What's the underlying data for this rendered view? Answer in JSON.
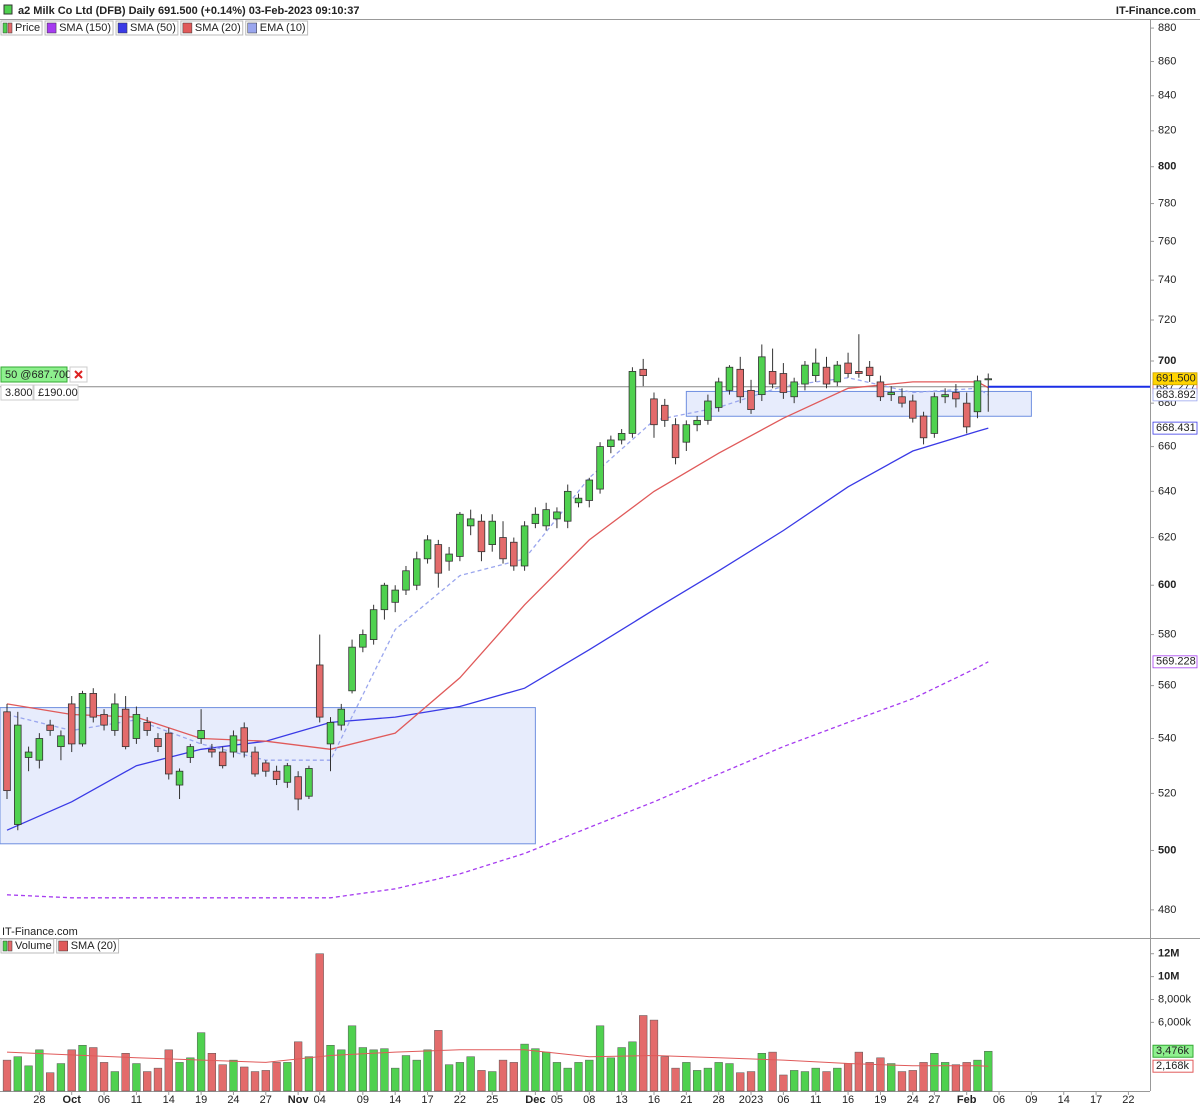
{
  "header": {
    "title": "a2 Milk Co Ltd (DFB) Daily 691.500 (+0.14%) 03-Feb-2023 09:10:37",
    "brand": "IT-Finance.com"
  },
  "chart_data": [
    {
      "type": "candlestick",
      "name": "Price",
      "watermark": "IT-Finance.com",
      "log_scale": true,
      "grid": false,
      "ylim": [
        473.4,
        884.9
      ],
      "yticks": [
        480,
        500,
        520,
        540,
        560,
        580,
        600,
        620,
        640,
        660,
        680,
        700,
        720,
        740,
        760,
        780,
        800,
        820,
        840,
        860,
        880
      ],
      "xlim": [
        -0.65,
        106
      ],
      "up_color": "#4fd14f",
      "down_color": "#e36b6b",
      "open": [
        550,
        509,
        533,
        532,
        545,
        537,
        553,
        538,
        557,
        549,
        543,
        551,
        540,
        546,
        540,
        542,
        523,
        533,
        540,
        536,
        535,
        535,
        544,
        535,
        531,
        528,
        524,
        526,
        519,
        568,
        538,
        545,
        558,
        575,
        578,
        590,
        593,
        598,
        600,
        611,
        617,
        610,
        612,
        625,
        627,
        617,
        620,
        618,
        608,
        626,
        625,
        628,
        627,
        635,
        636,
        641,
        660,
        663,
        666,
        696,
        682,
        679,
        670,
        662,
        670,
        672,
        678,
        686,
        696,
        686,
        684,
        695,
        694,
        683,
        689,
        693,
        697,
        690,
        699,
        695,
        697,
        690,
        684,
        683,
        681,
        674,
        666,
        683,
        685,
        680,
        676,
        691
      ],
      "high": [
        553,
        550,
        537,
        542,
        547,
        543,
        556,
        558,
        559,
        551,
        557,
        556,
        552,
        548,
        542,
        544,
        529,
        538,
        551,
        538,
        537,
        543,
        546,
        537,
        532,
        530,
        531,
        528,
        530,
        580,
        548,
        553,
        578,
        582,
        592,
        601,
        600,
        608,
        614,
        621,
        619,
        616,
        631,
        632,
        630,
        630,
        627,
        620,
        627,
        633,
        635,
        633,
        643,
        639,
        646,
        662,
        665,
        668,
        697,
        701,
        685,
        682,
        673,
        672,
        674,
        684,
        692,
        698,
        702,
        691,
        708,
        706,
        699,
        692,
        700,
        706,
        702,
        700,
        704,
        713,
        700,
        693,
        688,
        687,
        684,
        676,
        685,
        687,
        689,
        685,
        693,
        694
      ],
      "low": [
        518,
        507,
        528,
        529,
        541,
        532,
        535,
        537,
        546,
        543,
        541,
        536,
        538,
        541,
        535,
        525,
        518,
        531,
        538,
        533,
        529,
        533,
        533,
        526,
        526,
        523,
        522,
        514,
        518,
        546,
        528,
        543,
        557,
        573,
        576,
        586,
        589,
        596,
        598,
        609,
        599,
        606,
        610,
        621,
        610,
        614,
        609,
        606,
        606,
        624,
        623,
        624,
        624,
        633,
        633,
        639,
        657,
        661,
        664,
        688,
        664,
        669,
        652,
        658,
        667,
        670,
        676,
        684,
        680,
        675,
        681,
        687,
        682,
        680,
        686,
        690,
        687,
        688,
        692,
        692,
        690,
        681,
        681,
        678,
        671,
        661,
        664,
        680,
        678,
        666,
        673,
        676
      ],
      "close": [
        521,
        545,
        535,
        540,
        543,
        541,
        538,
        557,
        548,
        545,
        553,
        537,
        549,
        543,
        537,
        527,
        528,
        537,
        543,
        535,
        530,
        541,
        535,
        527,
        528,
        525,
        530,
        518,
        529,
        548,
        546,
        551,
        575,
        580,
        590,
        600,
        598,
        606,
        611,
        619,
        605,
        613,
        630,
        628,
        614,
        627,
        611,
        608,
        625,
        630,
        632,
        631,
        640,
        637,
        645,
        660,
        663,
        666,
        695,
        693,
        670,
        672,
        655,
        670,
        672,
        681,
        690,
        697,
        683,
        677,
        702,
        689,
        685,
        690,
        698,
        699,
        689,
        698,
        694,
        694,
        693,
        683,
        685,
        680,
        673,
        664,
        683,
        684,
        682,
        669,
        690.5,
        691.5
      ],
      "last_label": "691.500",
      "series": [
        {
          "name": "SMA (150)",
          "color": "#a63cf0",
          "dashed": true,
          "x": [
            0,
            6,
            12,
            18,
            24,
            30,
            36,
            42,
            48,
            54,
            60,
            66,
            72,
            78,
            84,
            90,
            91
          ],
          "values": [
            485,
            484,
            484,
            484,
            484,
            484,
            487,
            492,
            499,
            508,
            517,
            527,
            537,
            546,
            555,
            567,
            569.228
          ],
          "last_label": "569.228"
        },
        {
          "name": "SMA (50)",
          "color": "#3a3ae6",
          "dashed": false,
          "x": [
            0,
            6,
            12,
            18,
            24,
            30,
            36,
            42,
            48,
            54,
            60,
            66,
            72,
            78,
            84,
            90,
            91
          ],
          "values": [
            507,
            517,
            530,
            536,
            539,
            546,
            548,
            552,
            559,
            574,
            590,
            606,
            623,
            642,
            658,
            667,
            668.431
          ],
          "last_label": "668.431"
        },
        {
          "name": "SMA (20)",
          "color": "#e05a5a",
          "dashed": false,
          "x": [
            0,
            6,
            12,
            18,
            24,
            30,
            36,
            42,
            48,
            54,
            60,
            66,
            72,
            78,
            84,
            90,
            91
          ],
          "values": [
            553,
            549,
            548,
            540,
            539,
            536,
            542,
            563,
            592,
            619,
            640,
            657,
            673,
            687,
            690,
            690,
            687.277
          ],
          "last_label": "687.277"
        },
        {
          "name": "EMA (10)",
          "color": "#9aa6ee",
          "dashed": true,
          "x": [
            0,
            6,
            12,
            18,
            24,
            30,
            36,
            42,
            48,
            54,
            60,
            66,
            72,
            78,
            84,
            90,
            91
          ],
          "values": [
            549,
            543,
            547,
            538,
            532,
            532,
            582,
            604,
            611,
            646,
            672,
            678,
            688,
            692,
            685,
            687,
            683.892
          ],
          "last_label": "683.892"
        }
      ],
      "zones": [
        {
          "x": [
            -0.65,
            49
          ],
          "y": [
            502.3,
            551.6
          ]
        },
        {
          "x": [
            63,
            95
          ],
          "y": [
            673.9,
            685.5
          ]
        }
      ],
      "order": {
        "label": "50 @687.700",
        "price": 687.7,
        "quantity": "3.800",
        "amount": "£190.00"
      }
    },
    {
      "type": "bar",
      "name": "Volume",
      "xlim": [
        -0.65,
        106
      ],
      "ylim": [
        0,
        13200000
      ],
      "yticks": [
        {
          "value": 6000000,
          "label": "6,000k"
        },
        {
          "value": 8000000,
          "label": "8,000k"
        },
        {
          "value": 10000000,
          "label": "10M"
        },
        {
          "value": 12000000,
          "label": "12M"
        }
      ],
      "xticks": [
        {
          "value": 3,
          "label": "28"
        },
        {
          "value": 6,
          "label": "Oct"
        },
        {
          "value": 9,
          "label": "06"
        },
        {
          "value": 12,
          "label": "11"
        },
        {
          "value": 15,
          "label": "14"
        },
        {
          "value": 18,
          "label": "19"
        },
        {
          "value": 21,
          "label": "24"
        },
        {
          "value": 24,
          "label": "27"
        },
        {
          "value": 27,
          "label": "Nov"
        },
        {
          "value": 29,
          "label": "04"
        },
        {
          "value": 33,
          "label": "09"
        },
        {
          "value": 36,
          "label": "14"
        },
        {
          "value": 39,
          "label": "17"
        },
        {
          "value": 42,
          "label": "22"
        },
        {
          "value": 45,
          "label": "25"
        },
        {
          "value": 49,
          "label": "Dec"
        },
        {
          "value": 51,
          "label": "05"
        },
        {
          "value": 54,
          "label": "08"
        },
        {
          "value": 57,
          "label": "13"
        },
        {
          "value": 60,
          "label": "16"
        },
        {
          "value": 63,
          "label": "21"
        },
        {
          "value": 66,
          "label": "28"
        },
        {
          "value": 69,
          "label": "2023"
        },
        {
          "value": 72,
          "label": "06"
        },
        {
          "value": 75,
          "label": "11"
        },
        {
          "value": 78,
          "label": "16"
        },
        {
          "value": 81,
          "label": "19"
        },
        {
          "value": 84,
          "label": "24"
        },
        {
          "value": 86,
          "label": "27"
        },
        {
          "value": 89,
          "label": "Feb"
        },
        {
          "value": 92,
          "label": "06"
        },
        {
          "value": 95,
          "label": "09"
        },
        {
          "value": 98,
          "label": "14"
        },
        {
          "value": 101,
          "label": "17"
        },
        {
          "value": 104,
          "label": "22"
        }
      ],
      "values": [
        2700000,
        3000000,
        2200000,
        3600000,
        1600000,
        2400000,
        3600000,
        4000000,
        3800000,
        2500000,
        1700000,
        3300000,
        2400000,
        1700000,
        2000000,
        3600000,
        2500000,
        2900000,
        5100000,
        3300000,
        2300000,
        2700000,
        2100000,
        1700000,
        1800000,
        2500000,
        2500000,
        4300000,
        3000000,
        12000000,
        4000000,
        3600000,
        5700000,
        3800000,
        3600000,
        3700000,
        2000000,
        3100000,
        2700000,
        3600000,
        5300000,
        2300000,
        2500000,
        3000000,
        1800000,
        1700000,
        2700000,
        2500000,
        4100000,
        3700000,
        3400000,
        2500000,
        2000000,
        2500000,
        2700000,
        5700000,
        2900000,
        3800000,
        4300000,
        6600000,
        6200000,
        3000000,
        2000000,
        2500000,
        1800000,
        2000000,
        2500000,
        2400000,
        1600000,
        1700000,
        3300000,
        3400000,
        1400000,
        1800000,
        1700000,
        2000000,
        1700000,
        2000000,
        2400000,
        3400000,
        2500000,
        2900000,
        2400000,
        1700000,
        1800000,
        2500000,
        3300000,
        2500000,
        2300000,
        2500000,
        2700000,
        3476000
      ],
      "last_label": "3,476k",
      "series": [
        {
          "name": "SMA (20)",
          "color": "#e05a5a",
          "x": [
            0,
            12,
            24,
            30,
            36,
            42,
            48,
            54,
            60,
            66,
            72,
            78,
            84,
            90,
            91
          ],
          "values": [
            3400000,
            2900000,
            2500000,
            3100000,
            3400000,
            3600000,
            3600000,
            3000000,
            3100000,
            2900000,
            2700000,
            2400000,
            2200000,
            2200000,
            2168000
          ],
          "last_label": "2,168k"
        }
      ]
    }
  ]
}
